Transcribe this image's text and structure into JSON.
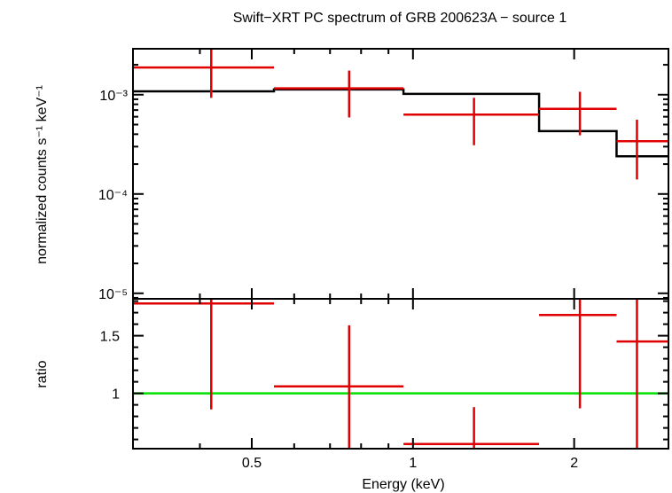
{
  "chart_data": [
    {
      "type": "scatter",
      "panel": "spectrum",
      "title": "Swift−XRT PC spectrum of GRB 200623A − source 1",
      "xlabel": "Energy (keV)",
      "ylabel": "normalized counts s⁻¹ keV⁻¹",
      "xscale": "log",
      "yscale": "log",
      "xlim": [
        0.3,
        3.0
      ],
      "ylim": [
        8.8e-06,
        0.0029
      ],
      "ytick_labels": [
        "10⁻³",
        "10⁻⁴",
        "10⁻⁵"
      ],
      "ytick_values": [
        0.001,
        0.0001,
        1e-05
      ],
      "data": {
        "name": "data",
        "color": "#e00000",
        "points": [
          {
            "x": 0.42,
            "xlo": 0.3,
            "xhi": 0.55,
            "y": 0.00188,
            "ylo": 0.00093,
            "yhi": 0.0029
          },
          {
            "x": 0.76,
            "xlo": 0.55,
            "xhi": 0.96,
            "y": 0.00116,
            "ylo": 0.00059,
            "yhi": 0.00175
          },
          {
            "x": 1.3,
            "xlo": 0.96,
            "xhi": 1.72,
            "y": 0.00063,
            "ylo": 0.00031,
            "yhi": 0.00093
          },
          {
            "x": 2.05,
            "xlo": 1.72,
            "xhi": 2.4,
            "y": 0.00072,
            "ylo": 0.00039,
            "yhi": 0.00107
          },
          {
            "x": 2.62,
            "xlo": 2.4,
            "xhi": 3.0,
            "y": 0.00034,
            "ylo": 0.00014,
            "yhi": 0.00056
          }
        ]
      },
      "model": {
        "name": "model",
        "color": "#000000",
        "steps": [
          {
            "xlo": 0.3,
            "xhi": 0.55,
            "y": 0.00108
          },
          {
            "xlo": 0.55,
            "xhi": 0.96,
            "y": 0.00113
          },
          {
            "xlo": 0.96,
            "xhi": 1.72,
            "y": 0.00102
          },
          {
            "xlo": 1.72,
            "xhi": 2.4,
            "y": 0.00043
          },
          {
            "xlo": 2.4,
            "xhi": 3.0,
            "y": 0.00024
          }
        ]
      }
    },
    {
      "type": "scatter",
      "panel": "ratio",
      "xlabel": "Energy (keV)",
      "ylabel": "ratio",
      "xscale": "log",
      "xlim": [
        0.3,
        3.0
      ],
      "ylim": [
        0.52,
        1.82
      ],
      "xtick_labels": [
        "0.5",
        "1",
        "2"
      ],
      "xtick_values": [
        0.5,
        1,
        2
      ],
      "ytick_labels": [
        "1.5",
        "1"
      ],
      "ytick_values": [
        1.5,
        1.0
      ],
      "reference_line": {
        "y": 1.0,
        "color": "#00e000"
      },
      "data": {
        "color": "#e00000",
        "points": [
          {
            "x": 0.42,
            "xlo": 0.3,
            "xhi": 0.55,
            "y": 1.78,
            "ylo": 0.86,
            "yhi": 1.82
          },
          {
            "x": 0.76,
            "xlo": 0.55,
            "xhi": 0.96,
            "y": 1.06,
            "ylo": 0.52,
            "yhi": 1.59
          },
          {
            "x": 1.3,
            "xlo": 0.96,
            "xhi": 1.72,
            "y": 0.56,
            "ylo": 0.52,
            "yhi": 0.88
          },
          {
            "x": 2.05,
            "xlo": 1.72,
            "xhi": 2.4,
            "y": 1.68,
            "ylo": 0.87,
            "yhi": 1.82
          },
          {
            "x": 2.62,
            "xlo": 2.4,
            "xhi": 3.0,
            "y": 1.45,
            "ylo": 0.52,
            "yhi": 1.82
          }
        ]
      }
    }
  ]
}
